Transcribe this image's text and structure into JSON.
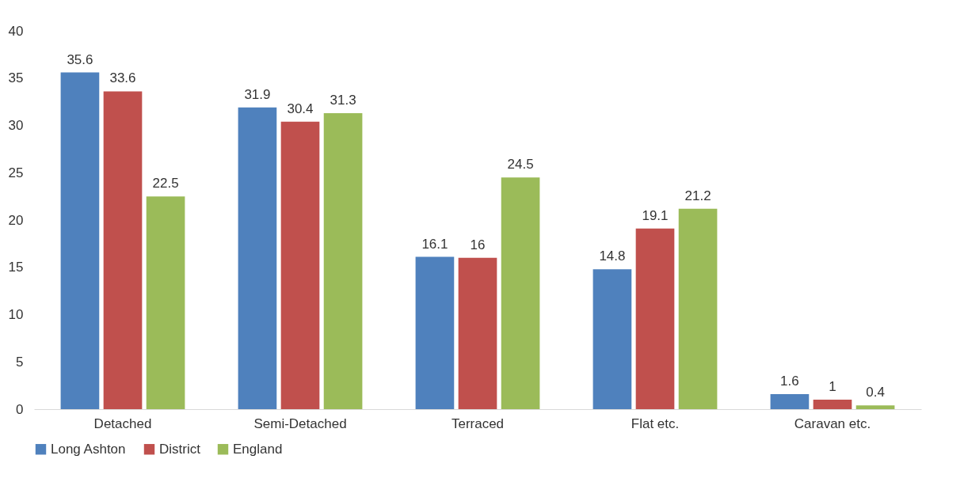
{
  "chart_data": {
    "type": "bar",
    "categories": [
      "Detached",
      "Semi-Detached",
      "Terraced",
      "Flat etc.",
      "Caravan etc."
    ],
    "series": [
      {
        "name": "Long Ashton",
        "color": "#4f81bd",
        "values": [
          35.6,
          31.9,
          16.1,
          14.8,
          1.6
        ]
      },
      {
        "name": "District",
        "color": "#c0504d",
        "values": [
          33.6,
          30.4,
          16,
          19.1,
          1
        ]
      },
      {
        "name": "England",
        "color": "#9bbb59",
        "values": [
          22.5,
          31.3,
          24.5,
          21.2,
          0.4
        ]
      }
    ],
    "ylim": [
      0,
      40
    ],
    "yticks": [
      0,
      5,
      10,
      15,
      20,
      25,
      30,
      35,
      40
    ],
    "grid": false,
    "legend": "bottom",
    "data_labels": true
  }
}
